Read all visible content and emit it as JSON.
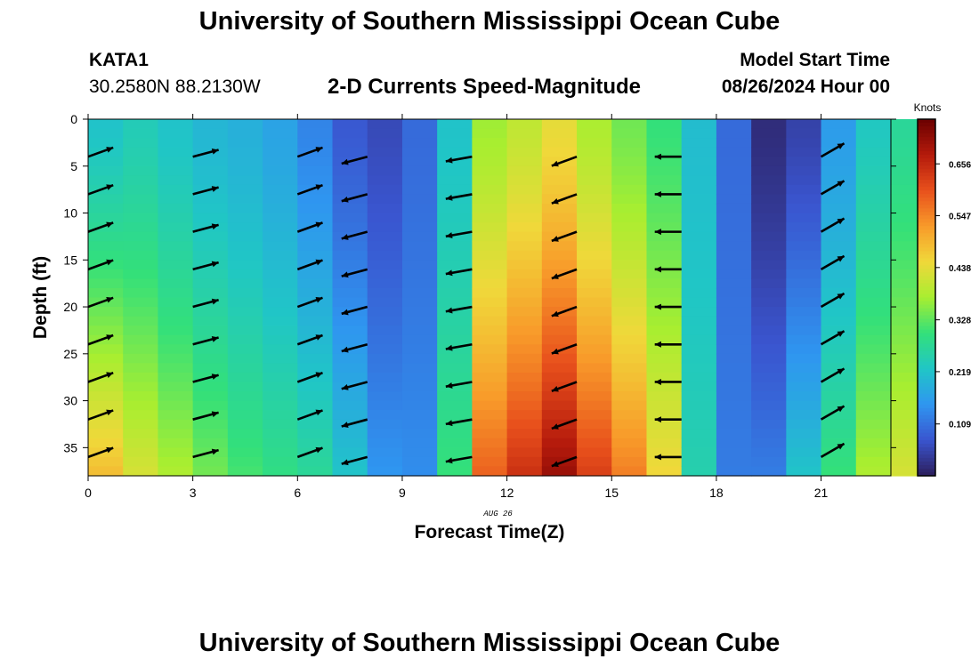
{
  "page": {
    "title": "University of Southern Mississippi Ocean Cube",
    "station_id": "KATA1",
    "station_coords": "30.2580N  88.2130W",
    "product_title": "2-D Currents Speed-Magnitude",
    "model_start_label": "Model Start Time",
    "model_start_value": "08/26/2024 Hour 00",
    "bottom_title": "University of Southern Mississippi Ocean Cube"
  },
  "chart_data": {
    "type": "heatmap",
    "xlabel": "Forecast Time(Z)",
    "ylabel": "Depth (ft)",
    "date_label": "AUG 26",
    "x_ticks": [
      0,
      3,
      6,
      9,
      12,
      15,
      18,
      21
    ],
    "y_ticks": [
      0,
      5,
      10,
      15,
      20,
      25,
      30,
      35
    ],
    "xlim": [
      0,
      23
    ],
    "ylim": [
      0,
      38
    ],
    "y_inverted": true,
    "colorbar": {
      "label": "Knots",
      "ticks": [
        0.109,
        0.219,
        0.328,
        0.438,
        0.547,
        0.656
      ],
      "min": 0.0,
      "max": 0.75,
      "colors": [
        "#2c1e5c",
        "#3a55cf",
        "#2f96f0",
        "#20c6c6",
        "#33e07a",
        "#a8ee30",
        "#f0d83a",
        "#f89a2a",
        "#e8501c",
        "#b41a0c",
        "#6a0000"
      ]
    },
    "hours": [
      0,
      1,
      2,
      3,
      4,
      5,
      6,
      7,
      8,
      9,
      10,
      11,
      12,
      13,
      14,
      15,
      16,
      17,
      18,
      19,
      20,
      21,
      22,
      23
    ],
    "surface_speed": [
      0.22,
      0.24,
      0.22,
      0.2,
      0.19,
      0.17,
      0.13,
      0.08,
      0.06,
      0.1,
      0.22,
      0.37,
      0.4,
      0.44,
      0.38,
      0.34,
      0.3,
      0.21,
      0.1,
      0.02,
      0.05,
      0.16,
      0.23,
      0.27
    ],
    "bottom_speed": [
      0.48,
      0.42,
      0.38,
      0.34,
      0.31,
      0.29,
      0.27,
      0.22,
      0.15,
      0.14,
      0.3,
      0.58,
      0.64,
      0.7,
      0.62,
      0.55,
      0.45,
      0.25,
      0.12,
      0.12,
      0.22,
      0.3,
      0.38,
      0.42
    ],
    "vector_hours": [
      0.5,
      3.5,
      6.5,
      8.5,
      11.5,
      14.5,
      17.5,
      21.5
    ],
    "vector_depths": [
      4,
      8,
      12,
      16,
      20,
      24,
      28,
      32,
      36
    ],
    "vector_directions_deg": [
      20,
      15,
      20,
      195,
      190,
      200,
      180,
      30
    ]
  }
}
